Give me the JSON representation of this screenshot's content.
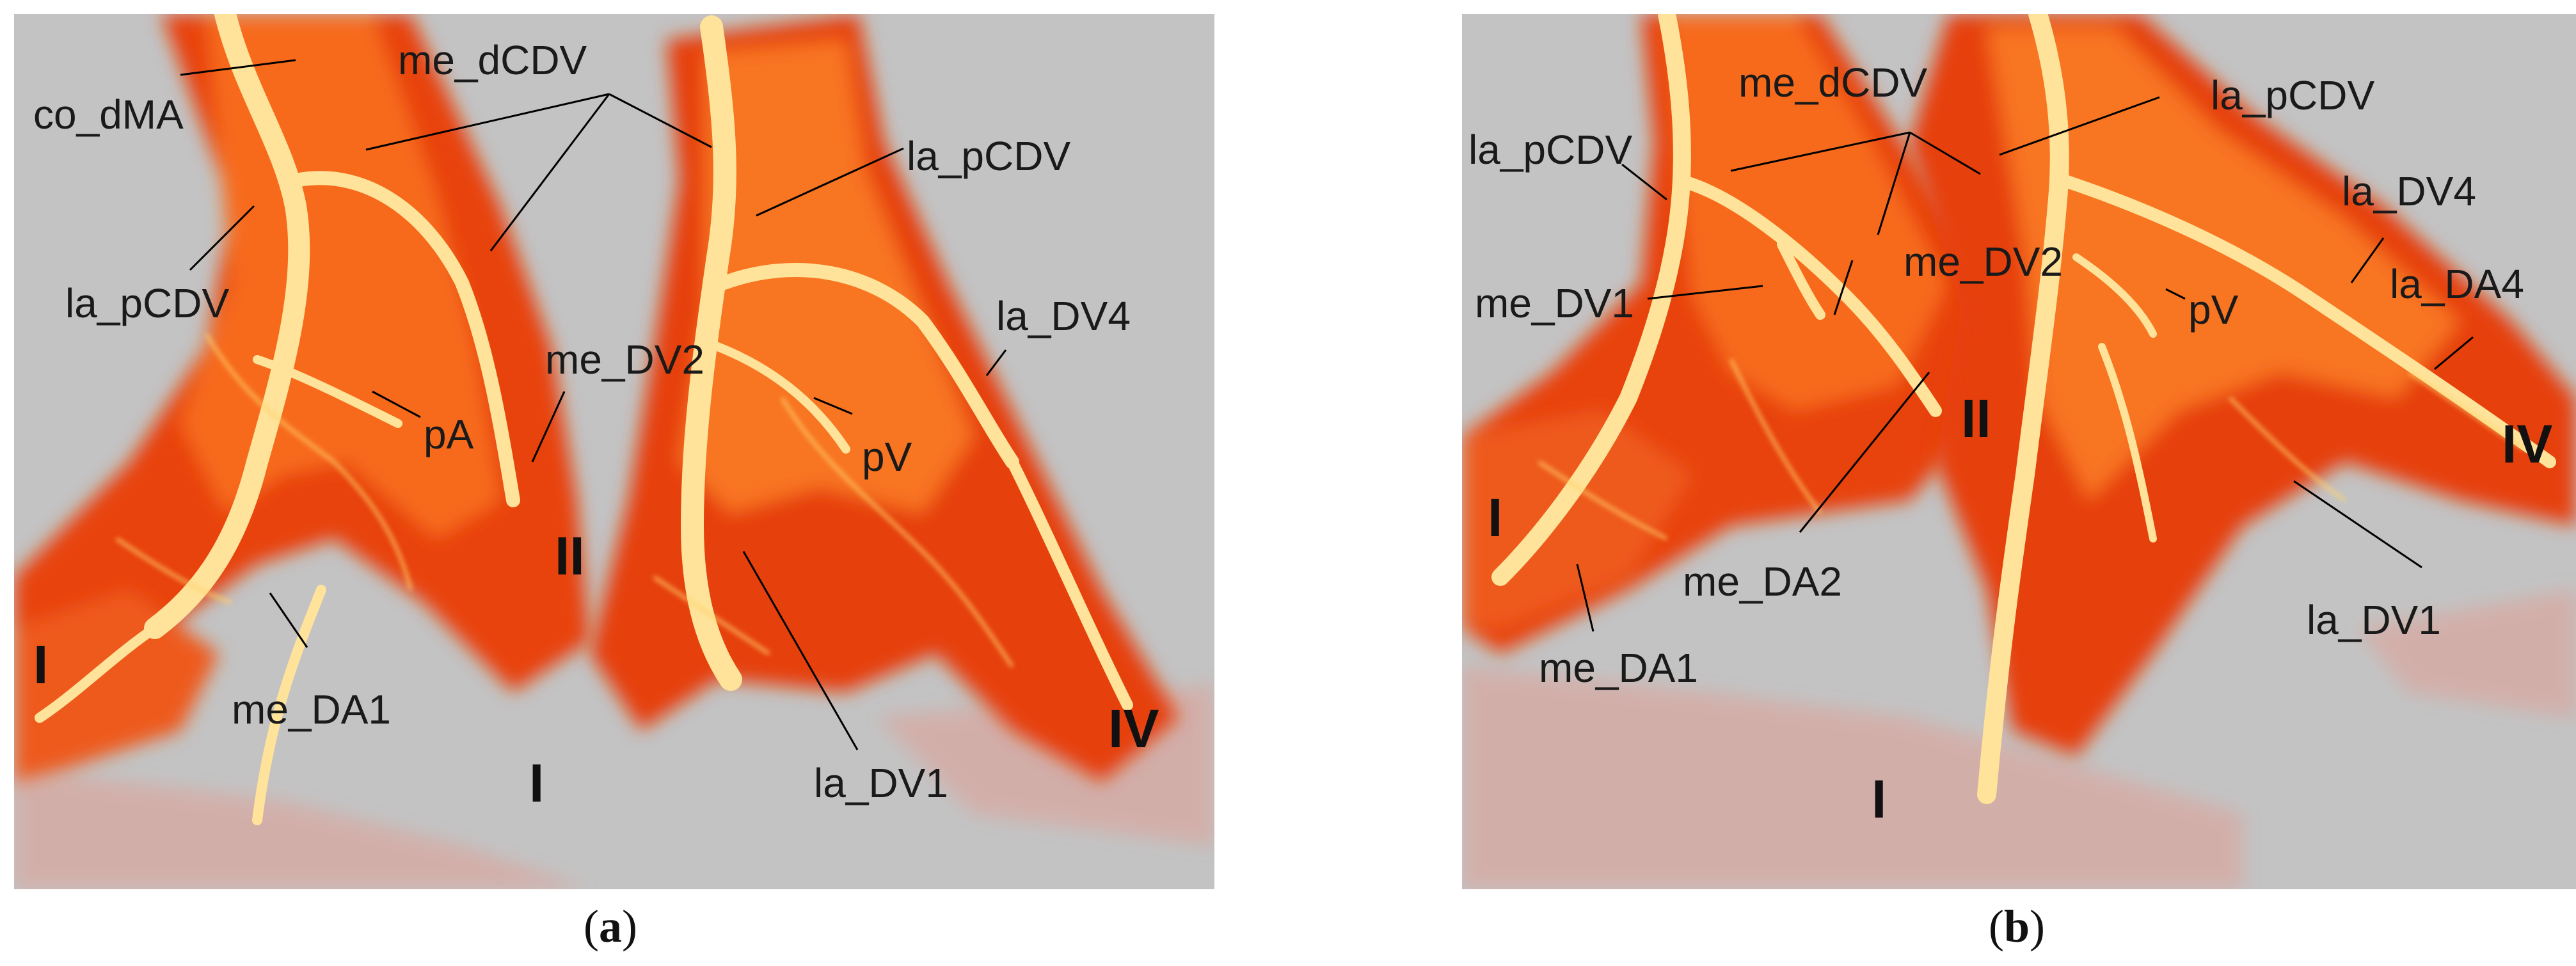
{
  "panels": [
    {
      "caption_letter": "a",
      "labels": {
        "co_dMA": "co_dMA",
        "me_dCDV": "me_dCDV",
        "la_pCDV_top": "la_pCDV",
        "la_pCDV_left": "la_pCDV",
        "la_DV4": "la_DV4",
        "me_DV2": "me_DV2",
        "pA": "pA",
        "pV": "pV",
        "me_DA1": "me_DA1",
        "la_DV1": "la_DV1"
      },
      "digits": {
        "I_left": "I",
        "II": "II",
        "I_mid": "I",
        "IV": "IV"
      }
    },
    {
      "caption_letter": "b",
      "labels": {
        "me_dCDV": "me_dCDV",
        "la_pCDV_left": "la_pCDV",
        "la_pCDV_right": "la_pCDV",
        "la_DV4": "la_DV4",
        "la_DA4": "la_DA4",
        "me_DV2": "me_DV2",
        "me_DV1": "me_DV1",
        "pV": "pV",
        "me_DA2": "me_DA2",
        "la_DV1": "la_DV1",
        "me_DA1": "me_DA1"
      },
      "digits": {
        "I_left": "I",
        "II": "II",
        "IV": "IV",
        "I_bottom": "I"
      }
    }
  ],
  "colors": {
    "background": "#c3c3c3",
    "tissue_dark": "#e63b12",
    "tissue_mid": "#f76a1f",
    "vessel_bright": "#ffe39a",
    "leader_line": "#000000"
  }
}
